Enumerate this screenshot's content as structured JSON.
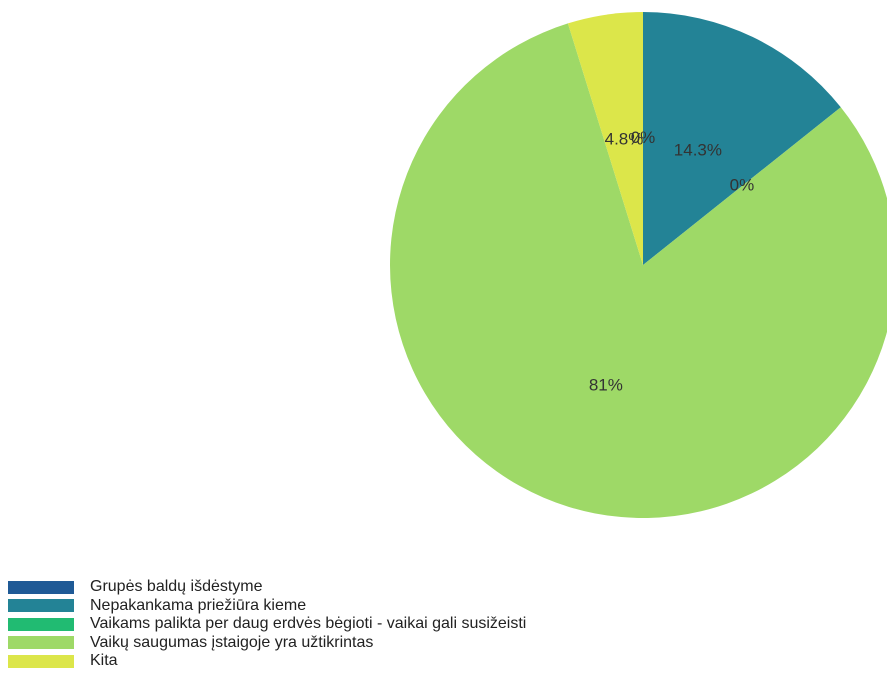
{
  "chart_data": {
    "type": "pie",
    "slices": [
      {
        "label": "Grupės baldų išdėstyme",
        "value": 0,
        "display": "0%",
        "color": "#1f5a96"
      },
      {
        "label": "Nepakankama priežiūra kieme",
        "value": 14.3,
        "display": "14.3%",
        "color": "#238396"
      },
      {
        "label": "Vaikams palikta per daug erdvės bėgioti - vaikai gali susižeisti",
        "value": 0,
        "display": "0%",
        "color": "#21bb72"
      },
      {
        "label": "Vaikų saugumas įstaigoje yra užtikrintas",
        "value": 81,
        "display": "81%",
        "color": "#9ed967"
      },
      {
        "label": "Kita",
        "value": 4.8,
        "display": "4.8%",
        "color": "#dce64a"
      }
    ],
    "legend_position": "bottom-left"
  }
}
